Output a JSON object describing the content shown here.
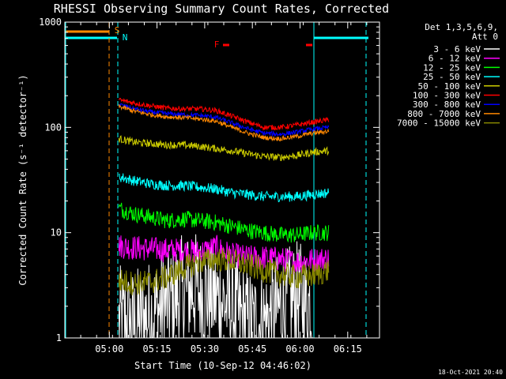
{
  "chart_data": {
    "type": "line",
    "title": "RHESSI Observing Summary Count Rates, Corrected",
    "xlabel": "Start Time (10-Sep-12 04:46:02)",
    "ylabel": "Corrected Count Rate (s⁻¹ detector⁻¹)",
    "yscale": "log",
    "ylim": [
      1,
      1000
    ],
    "xlim_minutes_after_0446": [
      0,
      99
    ],
    "x_ticks": [
      "05:00",
      "05:15",
      "05:30",
      "05:45",
      "06:00",
      "06:15"
    ],
    "y_ticks": [
      "1",
      "10",
      "100",
      "1000"
    ],
    "legend_header": [
      "Det 1,3,5,6,9,",
      "Att 0"
    ],
    "legend_placement": "right",
    "grid": false,
    "timestamp": "18-Oct-2021 20:40",
    "flags": {
      "S": "S",
      "N": "N",
      "F": "F"
    },
    "series": [
      {
        "name": "3 - 6 keV",
        "color": "#ffffff",
        "start": "05:03",
        "end": "06:04",
        "values": [
          1.4,
          1.3,
          1.6,
          2.0,
          2.6,
          3.0,
          2.6,
          2.2,
          1.6,
          1.3,
          1.5,
          2.0,
          2.4,
          2.0
        ]
      },
      {
        "name": "6 - 12 keV",
        "color": "#ff00ff",
        "start": "05:03",
        "end": "06:09",
        "values": [
          7.5,
          7.2,
          7.0,
          6.8,
          6.8,
          6.5,
          7.3,
          6.1,
          5.8,
          5.8,
          5.6,
          5.3,
          5.5,
          5.7
        ]
      },
      {
        "name": "12 - 25 keV",
        "color": "#00ff00",
        "start": "05:03",
        "end": "06:09",
        "values": [
          17,
          15,
          14,
          13,
          13.5,
          13,
          12.5,
          11.5,
          10.5,
          10,
          9.5,
          9.5,
          10,
          10
        ]
      },
      {
        "name": "25 - 50 keV",
        "color": "#00ffff",
        "start": "05:03",
        "end": "06:09",
        "values": [
          34,
          31,
          29,
          28,
          28,
          27,
          26,
          24,
          23,
          22,
          22,
          22,
          23,
          24
        ]
      },
      {
        "name": "50 - 100 keV",
        "color": "#cccc00",
        "start": "05:03",
        "end": "06:09",
        "values": [
          78,
          72,
          70,
          68,
          68,
          66,
          63,
          60,
          56,
          53,
          52,
          54,
          58,
          60
        ]
      },
      {
        "name": "100 - 300 keV",
        "color": "#ff0000",
        "start": "05:03",
        "end": "06:09",
        "values": [
          182,
          170,
          160,
          152,
          150,
          150,
          145,
          128,
          112,
          100,
          100,
          105,
          112,
          118
        ]
      },
      {
        "name": "300 - 800 keV",
        "color": "#0000ff",
        "start": "05:03",
        "end": "06:09",
        "values": [
          165,
          150,
          140,
          135,
          132,
          130,
          125,
          110,
          97,
          88,
          86,
          90,
          96,
          100
        ]
      },
      {
        "name": "800 - 7000 keV",
        "color": "#ff8800",
        "start": "05:03",
        "end": "06:09",
        "values": [
          158,
          142,
          132,
          126,
          124,
          120,
          115,
          100,
          88,
          80,
          78,
          82,
          88,
          92
        ]
      },
      {
        "name": "7000 - 15000 keV",
        "color": "#888800",
        "start": "05:03",
        "end": "06:09",
        "values": [
          3.5,
          3.3,
          3.4,
          3.8,
          4.6,
          5.3,
          5.6,
          5.4,
          4.9,
          4.4,
          4.0,
          3.8,
          3.9,
          4.4
        ]
      }
    ]
  }
}
